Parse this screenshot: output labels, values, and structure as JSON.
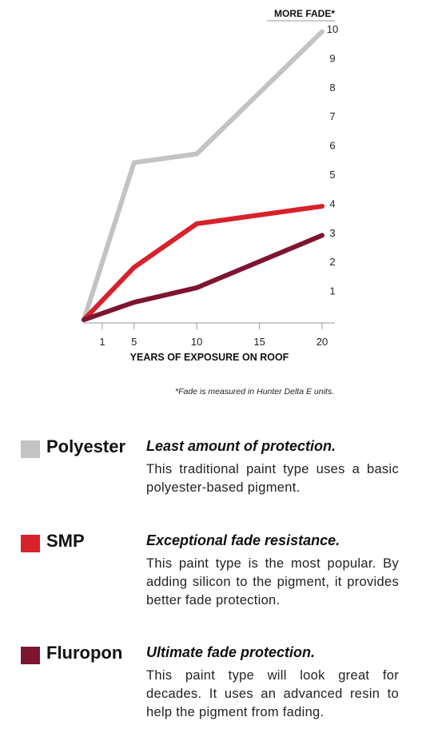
{
  "chart_data": {
    "type": "line",
    "x_categories": [
      "1",
      "5",
      "10",
      "15",
      "20"
    ],
    "x": [
      1,
      5,
      10,
      15,
      20
    ],
    "xlabel": "YEARS OF EXPOSURE ON ROOF",
    "ylabel": "MORE FADE*",
    "y_ticks": [
      "1",
      "2",
      "3",
      "4",
      "5",
      "6",
      "7",
      "8",
      "9",
      "10"
    ],
    "ylim": [
      0,
      10
    ],
    "grid": false,
    "legend": "below",
    "series": [
      {
        "name": "Polyester",
        "color": "#c3c3c3",
        "points": [
          [
            1,
            0
          ],
          [
            5,
            5.4
          ],
          [
            10,
            5.7
          ],
          [
            20,
            9.9
          ]
        ]
      },
      {
        "name": "SMP",
        "color": "#d7222b",
        "points": [
          [
            1,
            0
          ],
          [
            5,
            1.8
          ],
          [
            10,
            3.3
          ],
          [
            20,
            3.9
          ]
        ]
      },
      {
        "name": "Fluropon",
        "color": "#7e1530",
        "points": [
          [
            1,
            0
          ],
          [
            5,
            0.6
          ],
          [
            10,
            1.1
          ],
          [
            20,
            2.9
          ]
        ]
      }
    ],
    "footnote": "*Fade is measured in Hunter Delta E units."
  },
  "legend": [
    {
      "name": "Polyester",
      "color": "#c3c3c3",
      "title": "Least amount of protection.",
      "description": "This traditional paint type uses a basic polyester-based pigment."
    },
    {
      "name": "SMP",
      "color": "#d7222b",
      "title": "Exceptional fade resistance.",
      "description": "This paint type is the most popular. By adding silicon to the pigment, it provides better fade protection."
    },
    {
      "name": "Fluropon",
      "color": "#7e1530",
      "title": "Ultimate fade protection.",
      "description": "This paint type will look great for decades. It uses an advanced resin to help the pigment from fading."
    }
  ]
}
